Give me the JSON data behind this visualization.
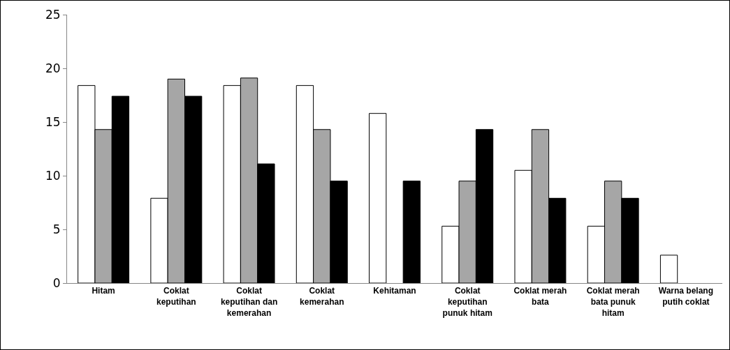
{
  "chart_data": {
    "type": "bar",
    "categories": [
      "Hitam",
      "Coklat keputihan",
      "Coklat keputihan dan kemerahan",
      "Coklat kemerahan",
      "Kehitaman",
      "Coklat keputihan punuk hitam",
      "Coklat merah bata",
      "Coklat merah bata punuk hitam",
      "Warna belang putih coklat"
    ],
    "series": [
      {
        "color": "#ffffff",
        "values": [
          18.4,
          7.9,
          18.4,
          18.4,
          15.8,
          5.3,
          10.5,
          5.3,
          2.6
        ]
      },
      {
        "color": "#a6a6a6",
        "values": [
          14.3,
          19.0,
          19.1,
          14.3,
          null,
          9.5,
          14.3,
          9.5,
          null
        ]
      },
      {
        "color": "#000000",
        "values": [
          17.4,
          17.4,
          11.1,
          9.5,
          9.5,
          14.3,
          7.9,
          7.9,
          null
        ]
      }
    ],
    "ylim": [
      0,
      25
    ],
    "yticks": [
      0,
      5,
      10,
      15,
      20,
      25
    ]
  }
}
